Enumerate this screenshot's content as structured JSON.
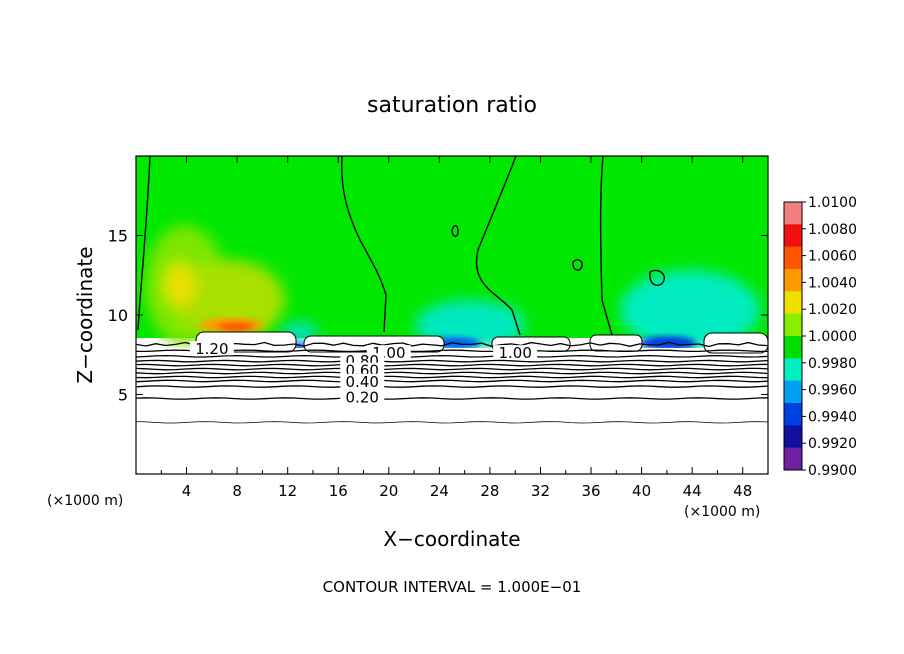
{
  "chart_data": {
    "type": "heatmap",
    "title": "saturation ratio",
    "xlabel": "X−coordinate",
    "ylabel": "Z−coordinate",
    "x_unit_label": "(×1000 m)",
    "z_unit_label": "(×1000 m)",
    "xlim": [
      0,
      50
    ],
    "ylim": [
      0,
      20
    ],
    "x_ticks": [
      "4",
      "8",
      "12",
      "16",
      "20",
      "24",
      "28",
      "32",
      "36",
      "40",
      "44",
      "48"
    ],
    "y_ticks": [
      "5",
      "10",
      "15"
    ],
    "footer": "CONTOUR INTERVAL = 1.000E−01",
    "colorbar": {
      "labels": [
        "1.0100",
        "1.0080",
        "1.0060",
        "1.0040",
        "1.0020",
        "1.0000",
        "0.9980",
        "0.9960",
        "0.9940",
        "0.9920",
        "0.9900"
      ],
      "colors": [
        "#f08080",
        "#ee1010",
        "#ff5500",
        "#ff9900",
        "#f0e000",
        "#88ee00",
        "#00dd00",
        "#00eec0",
        "#00a0f0",
        "#0040e0",
        "#1010a0",
        "#7020a0"
      ]
    },
    "contour_labels": [
      {
        "text": "1.20",
        "x": 6.0,
        "z": 7.85
      },
      {
        "text": "1.00",
        "x": 20.0,
        "z": 7.6
      },
      {
        "text": "1.00",
        "x": 30.0,
        "z": 7.6
      },
      {
        "text": "0.80",
        "x": 17.9,
        "z": 7.1
      },
      {
        "text": "0.60",
        "x": 17.9,
        "z": 6.5
      },
      {
        "text": "0.40",
        "x": 17.9,
        "z": 5.8
      },
      {
        "text": "0.20",
        "x": 17.9,
        "z": 4.8
      }
    ],
    "contour_levels_z": [
      8.15,
      7.75,
      7.4,
      7.1,
      6.85,
      6.6,
      6.35,
      6.1,
      5.85,
      5.5,
      4.75,
      3.25
    ]
  }
}
